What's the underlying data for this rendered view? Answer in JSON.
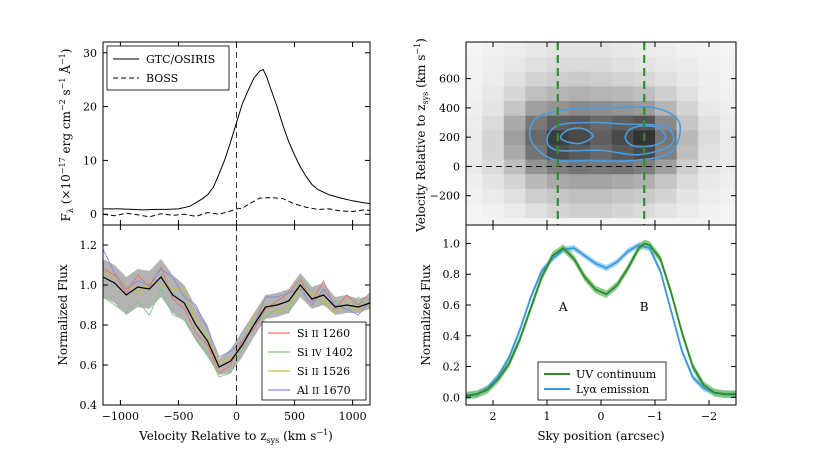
{
  "chart_data": [
    {
      "id": "spectrum",
      "type": "line",
      "xlim": [
        -1150,
        1150
      ],
      "ylim": [
        -2,
        32
      ],
      "xticks": [
        -1000,
        -500,
        0,
        500,
        1000
      ],
      "yticks": [
        0,
        10,
        20,
        30
      ],
      "ylabel_main": "F",
      "ylabel_sub": "λ",
      "ylabel_rest": " (×10",
      "ylabel_exp1": "−17",
      "ylabel_unit": " erg cm",
      "ylabel_exp2": "−2",
      "ylabel_s": " s",
      "ylabel_exp3": "−1",
      "ylabel_ang": " Å",
      "ylabel_exp4": "−1",
      "ylabel_close": ")",
      "legend": "upper-left",
      "series": [
        {
          "name": "GTC/OSIRIS",
          "style": "solid",
          "x": [
            -1150,
            -1000,
            -900,
            -800,
            -700,
            -600,
            -500,
            -400,
            -300,
            -250,
            -200,
            -150,
            -100,
            -50,
            0,
            50,
            100,
            150,
            200,
            230,
            260,
            300,
            350,
            400,
            450,
            500,
            550,
            600,
            650,
            700,
            800,
            900,
            1000,
            1100,
            1150
          ],
          "y": [
            1.0,
            1.0,
            0.9,
            0.8,
            0.9,
            0.9,
            1.0,
            1.5,
            2.8,
            3.6,
            5.0,
            7.5,
            10.2,
            13.5,
            17.0,
            20.5,
            23.0,
            25.3,
            26.6,
            26.9,
            25.5,
            23.0,
            20.0,
            16.5,
            13.5,
            11.0,
            8.8,
            7.0,
            5.5,
            4.6,
            3.6,
            3.0,
            2.5,
            2.1,
            2.0
          ]
        },
        {
          "name": "BOSS",
          "style": "dashed",
          "x": [
            -1150,
            -1050,
            -950,
            -850,
            -750,
            -650,
            -550,
            -450,
            -350,
            -250,
            -150,
            -50,
            0,
            50,
            100,
            200,
            300,
            400,
            500,
            600,
            700,
            800,
            900,
            1000,
            1100,
            1150
          ],
          "y": [
            0.0,
            -0.3,
            0.2,
            -0.1,
            -0.5,
            0.1,
            -0.2,
            0.0,
            -0.4,
            0.3,
            0.0,
            0.6,
            1.0,
            1.1,
            1.8,
            3.0,
            3.1,
            2.9,
            1.9,
            1.3,
            0.9,
            1.0,
            0.6,
            0.5,
            0.8,
            0.7
          ]
        }
      ]
    },
    {
      "id": "absorption",
      "type": "line",
      "xlim": [
        -1150,
        1150
      ],
      "ylim": [
        0.4,
        1.3
      ],
      "xticks": [
        -1000,
        -500,
        0,
        500,
        1000
      ],
      "yticks": [
        0.4,
        0.6,
        0.8,
        1.0,
        1.2
      ],
      "xlabel": "Velocity Relative to z",
      "xlabel_sub": "sys",
      "xlabel_unit": " (km s",
      "xlabel_exp": "−1",
      "xlabel_close": ")",
      "ylabel": "Normalized Flux",
      "legend": "lower-right",
      "x": [
        -1150,
        -1050,
        -950,
        -850,
        -750,
        -650,
        -550,
        -450,
        -350,
        -250,
        -150,
        -50,
        50,
        150,
        250,
        350,
        450,
        550,
        650,
        750,
        850,
        950,
        1050,
        1150
      ],
      "mean": [
        1.04,
        1.01,
        0.95,
        0.99,
        0.98,
        1.04,
        0.95,
        0.91,
        0.8,
        0.72,
        0.59,
        0.62,
        0.7,
        0.8,
        0.89,
        0.9,
        0.92,
        1.0,
        0.93,
        0.95,
        0.89,
        0.9,
        0.89,
        0.91
      ],
      "band_lower": [
        0.94,
        0.91,
        0.85,
        0.89,
        0.88,
        0.94,
        0.86,
        0.82,
        0.72,
        0.64,
        0.55,
        0.56,
        0.64,
        0.74,
        0.83,
        0.84,
        0.86,
        0.94,
        0.88,
        0.9,
        0.85,
        0.86,
        0.86,
        0.88
      ],
      "band_upper": [
        1.13,
        1.1,
        1.04,
        1.08,
        1.07,
        1.13,
        1.05,
        1.0,
        0.89,
        0.8,
        0.63,
        0.68,
        0.77,
        0.86,
        0.95,
        0.96,
        0.98,
        1.06,
        0.99,
        1.01,
        0.94,
        0.95,
        0.93,
        0.95
      ],
      "series": [
        {
          "name_main": "Si",
          "name_ion": "II",
          "name_wave": "1260",
          "color": "#e8716b",
          "y": [
            1.08,
            1.05,
            0.96,
            1.05,
            0.99,
            1.09,
            0.93,
            0.88,
            0.76,
            0.7,
            0.56,
            0.6,
            0.72,
            0.78,
            0.88,
            0.92,
            0.96,
            1.03,
            0.92,
            1.02,
            0.88,
            0.95,
            0.9,
            0.96
          ]
        },
        {
          "name_main": "Si",
          "name_ion": "IV",
          "name_wave": "1402",
          "color": "#7dc47a",
          "y": [
            0.94,
            0.9,
            0.86,
            0.92,
            0.85,
            0.98,
            0.85,
            0.83,
            0.73,
            0.66,
            0.54,
            0.56,
            0.68,
            0.82,
            0.84,
            0.88,
            0.86,
            1.04,
            0.96,
            0.9,
            0.92,
            0.87,
            0.94,
            0.88
          ]
        },
        {
          "name_main": "Si",
          "name_ion": "II",
          "name_wave": "1526",
          "color": "#c9c22e",
          "y": [
            1.06,
            1.04,
            1.0,
            0.96,
            1.02,
            1.0,
            0.98,
            0.98,
            0.82,
            0.74,
            0.61,
            0.63,
            0.7,
            0.85,
            0.9,
            0.86,
            0.9,
            0.98,
            0.96,
            0.92,
            0.86,
            0.92,
            0.87,
            0.9
          ]
        },
        {
          "name_main": "Al",
          "name_ion": "II",
          "name_wave": "1670",
          "color": "#8b87e0",
          "y": [
            1.18,
            1.06,
            0.98,
            1.02,
            1.0,
            1.08,
            1.04,
            0.94,
            0.9,
            0.78,
            0.64,
            0.67,
            0.72,
            0.8,
            0.94,
            0.94,
            0.96,
            0.98,
            0.9,
            0.98,
            0.9,
            0.88,
            0.85,
            0.92
          ]
        }
      ]
    },
    {
      "id": "2d-spectrum",
      "type": "heatmap",
      "xlim": [
        2.5,
        -2.5
      ],
      "ylim": [
        -400,
        850
      ],
      "yticks": [
        -200,
        0,
        200,
        400,
        600
      ],
      "ylabel": "Velocity Relative to z",
      "ylabel_sub": "sys",
      "ylabel_unit": " (km s",
      "ylabel_exp": "−1",
      "ylabel_close": ")",
      "x_centers": [
        2.4,
        2.0,
        1.6,
        1.2,
        0.8,
        0.4,
        0.0,
        -0.4,
        -0.8,
        -1.2,
        -1.6,
        -2.0,
        -2.4
      ],
      "y_centers": [
        -300,
        -200,
        -100,
        0,
        100,
        200,
        300,
        400,
        500,
        600,
        700,
        800
      ],
      "values": [
        [
          0.0,
          0.02,
          0.05,
          0.1,
          0.15,
          0.18,
          0.18,
          0.15,
          0.12,
          0.08,
          0.05,
          0.02,
          0.0
        ],
        [
          0.02,
          0.05,
          0.1,
          0.18,
          0.22,
          0.25,
          0.25,
          0.22,
          0.2,
          0.15,
          0.08,
          0.04,
          0.02
        ],
        [
          0.03,
          0.08,
          0.15,
          0.28,
          0.35,
          0.38,
          0.38,
          0.35,
          0.32,
          0.22,
          0.12,
          0.06,
          0.03
        ],
        [
          0.05,
          0.12,
          0.25,
          0.45,
          0.55,
          0.6,
          0.58,
          0.6,
          0.55,
          0.4,
          0.18,
          0.08,
          0.04
        ],
        [
          0.05,
          0.15,
          0.35,
          0.6,
          0.78,
          0.72,
          0.65,
          0.72,
          0.8,
          0.55,
          0.25,
          0.1,
          0.05
        ],
        [
          0.05,
          0.15,
          0.4,
          0.65,
          0.85,
          0.8,
          0.7,
          0.8,
          0.9,
          0.6,
          0.28,
          0.12,
          0.05
        ],
        [
          0.04,
          0.12,
          0.35,
          0.58,
          0.7,
          0.72,
          0.65,
          0.7,
          0.75,
          0.5,
          0.22,
          0.1,
          0.04
        ],
        [
          0.03,
          0.08,
          0.22,
          0.4,
          0.45,
          0.5,
          0.48,
          0.45,
          0.42,
          0.3,
          0.15,
          0.06,
          0.03
        ],
        [
          0.02,
          0.06,
          0.14,
          0.25,
          0.3,
          0.32,
          0.3,
          0.28,
          0.25,
          0.18,
          0.1,
          0.04,
          0.02
        ],
        [
          0.01,
          0.04,
          0.1,
          0.16,
          0.18,
          0.2,
          0.18,
          0.16,
          0.14,
          0.1,
          0.06,
          0.03,
          0.01
        ],
        [
          0.01,
          0.03,
          0.06,
          0.1,
          0.12,
          0.12,
          0.12,
          0.1,
          0.08,
          0.06,
          0.04,
          0.02,
          0.01
        ],
        [
          0.0,
          0.02,
          0.04,
          0.06,
          0.08,
          0.08,
          0.08,
          0.06,
          0.05,
          0.04,
          0.02,
          0.01,
          0.0
        ]
      ],
      "dashed_lines_x": [
        0.8,
        -0.8
      ],
      "contour_color": "#4a9de0",
      "line_color": "#2f8f2f"
    },
    {
      "id": "spatial-profile",
      "type": "line",
      "xlim": [
        2.5,
        -2.5
      ],
      "ylim": [
        -0.05,
        1.12
      ],
      "xticks": [
        2,
        1,
        0,
        -1,
        -2
      ],
      "yticks": [
        0.0,
        0.2,
        0.4,
        0.6,
        0.8,
        1.0
      ],
      "xlabel": "Sky position (arcsec)",
      "ylabel": "Normalized Flux",
      "legend": "lower-center",
      "annotations": [
        {
          "text": "A",
          "x": 0.7,
          "y": 0.56
        },
        {
          "text": "B",
          "x": -0.8,
          "y": 0.56
        }
      ],
      "series": [
        {
          "name": "UV continuum",
          "color": "#2e8b2e",
          "band": "#6fbf6f",
          "x": [
            2.5,
            2.3,
            2.1,
            1.9,
            1.7,
            1.5,
            1.3,
            1.1,
            0.9,
            0.7,
            0.5,
            0.3,
            0.1,
            -0.1,
            -0.3,
            -0.5,
            -0.7,
            -0.8,
            -0.9,
            -1.1,
            -1.3,
            -1.5,
            -1.7,
            -1.9,
            -2.1,
            -2.3,
            -2.5
          ],
          "y": [
            0.01,
            0.02,
            0.05,
            0.12,
            0.22,
            0.38,
            0.58,
            0.78,
            0.92,
            0.97,
            0.9,
            0.78,
            0.7,
            0.67,
            0.73,
            0.84,
            0.97,
            1.0,
            0.99,
            0.9,
            0.68,
            0.42,
            0.2,
            0.08,
            0.03,
            0.02,
            0.02
          ],
          "err": 0.025
        },
        {
          "name_main": "Ly",
          "name_greek": "α",
          "name_rest": " emission",
          "color": "#3b97e0",
          "band": "#8ec8f0",
          "x": [
            2.5,
            2.3,
            2.1,
            1.9,
            1.7,
            1.5,
            1.3,
            1.1,
            0.9,
            0.7,
            0.5,
            0.3,
            0.1,
            -0.1,
            -0.3,
            -0.5,
            -0.7,
            -0.9,
            -1.1,
            -1.3,
            -1.5,
            -1.7,
            -1.9,
            -2.1,
            -2.3,
            -2.5
          ],
          "y": [
            0.01,
            0.02,
            0.06,
            0.14,
            0.26,
            0.44,
            0.65,
            0.82,
            0.9,
            0.96,
            0.97,
            0.92,
            0.87,
            0.84,
            0.88,
            0.95,
            0.99,
            0.97,
            0.82,
            0.56,
            0.3,
            0.13,
            0.06,
            0.03,
            0.02,
            0.02
          ],
          "err": 0.02
        }
      ]
    }
  ]
}
